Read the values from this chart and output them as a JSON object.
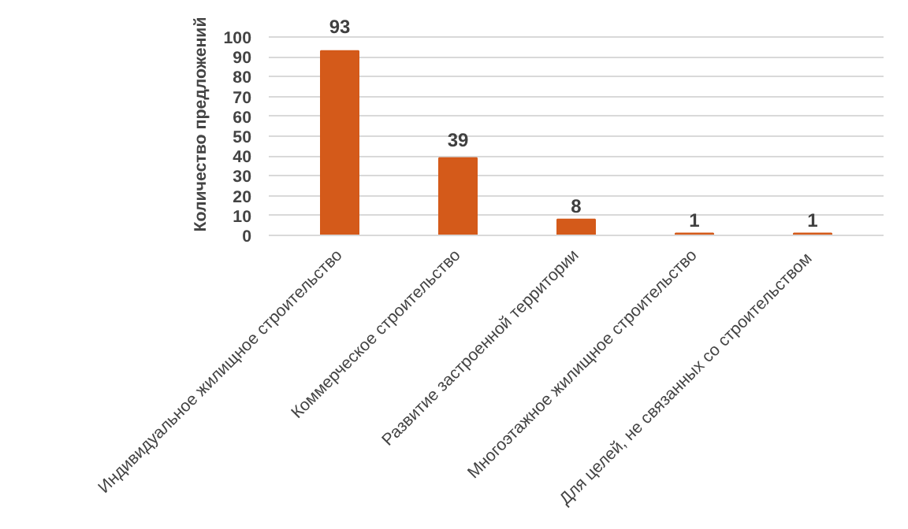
{
  "chart_data": {
    "type": "bar",
    "ylabel": "Количество предложений",
    "categories": [
      "Индивидуальное жилищное строительство",
      "Коммерческое строительство",
      "Развитие застроенной территории",
      "Многоэтажное жилищное строительство",
      "Для целей,  не связанных со строительством"
    ],
    "values": [
      93,
      39,
      8,
      1,
      1
    ],
    "color": "#d45a1a",
    "ylim": [
      0,
      100
    ],
    "yticks": [
      0,
      10,
      20,
      30,
      40,
      50,
      60,
      70,
      80,
      90,
      100
    ],
    "grid": "y",
    "data_labels": true
  }
}
